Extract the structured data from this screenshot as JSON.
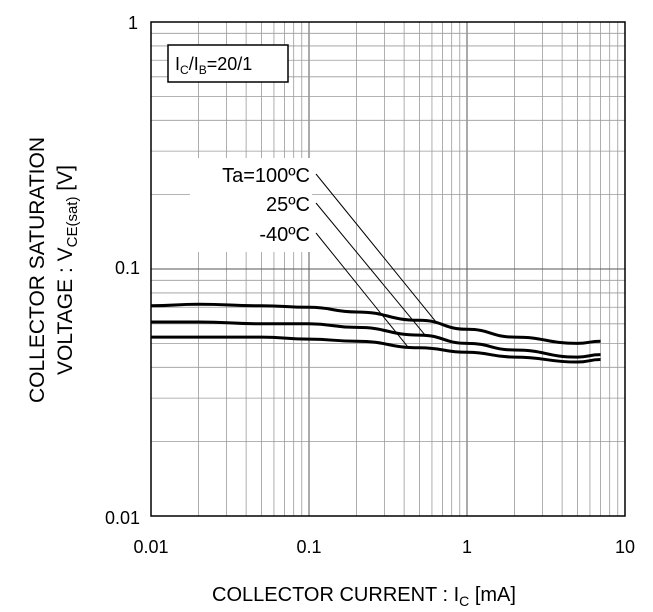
{
  "chart_data": {
    "type": "line",
    "title": "",
    "xlabel": "COLLECTOR CURRENT : I",
    "xlabel_sub": "C",
    "xlabel_unit": " [mA]",
    "ylabel_line1": "COLLECTOR SATURATION",
    "ylabel_line2_a": "VOLTAGE : V",
    "ylabel_line2_sub": "CE(sat)",
    "ylabel_line2_b": " [V]",
    "x_scale": "log",
    "y_scale": "log",
    "xlim": [
      0.01,
      10
    ],
    "ylim": [
      0.01,
      1
    ],
    "x_ticks": [
      "0.01",
      "0.1",
      "1",
      "10"
    ],
    "y_ticks": [
      "0.01",
      "0.1",
      "1"
    ],
    "grid": true,
    "condition": {
      "a": "I",
      "a_sub": "C",
      "b": "/I",
      "b_sub": "B",
      "c": "=20/1"
    },
    "series": [
      {
        "name": "Ta=100ºC",
        "x": [
          0.01,
          0.02,
          0.05,
          0.1,
          0.2,
          0.5,
          1,
          2,
          5,
          7
        ],
        "y": [
          0.071,
          0.072,
          0.071,
          0.07,
          0.067,
          0.062,
          0.057,
          0.053,
          0.05,
          0.051
        ]
      },
      {
        "name": "25ºC",
        "x": [
          0.01,
          0.02,
          0.05,
          0.1,
          0.2,
          0.5,
          1,
          2,
          5,
          7
        ],
        "y": [
          0.061,
          0.061,
          0.06,
          0.06,
          0.058,
          0.054,
          0.05,
          0.047,
          0.044,
          0.045
        ]
      },
      {
        "name": "-40ºC",
        "x": [
          0.01,
          0.02,
          0.05,
          0.1,
          0.2,
          0.5,
          1,
          2,
          5,
          7
        ],
        "y": [
          0.053,
          0.053,
          0.053,
          0.052,
          0.051,
          0.048,
          0.046,
          0.044,
          0.042,
          0.043
        ]
      }
    ],
    "series_labels": [
      "Ta=100ºC",
      "25ºC",
      "-40ºC"
    ]
  }
}
